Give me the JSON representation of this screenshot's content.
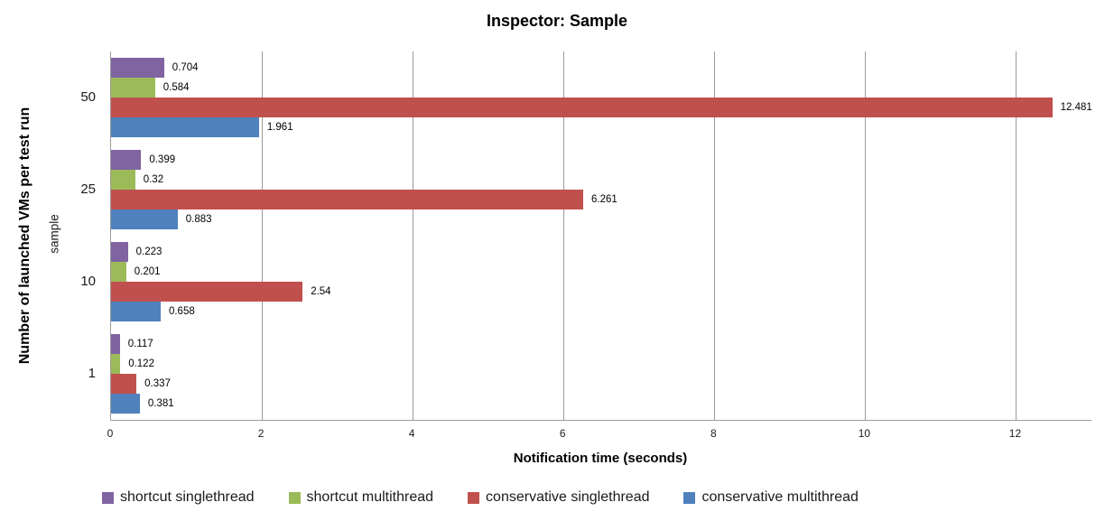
{
  "chart_data": {
    "type": "bar",
    "orientation": "horizontal",
    "title": "Inspector: Sample",
    "xlabel": "Notification time (seconds)",
    "ylabel": "Number of launched VMs per test run",
    "ylabel_secondary": "sample",
    "categories": [
      "50",
      "25",
      "10",
      "1"
    ],
    "series": [
      {
        "name": "shortcut singlethread",
        "color": "#8064A2",
        "values": [
          0.704,
          0.399,
          0.223,
          0.117
        ],
        "labels": [
          "0.704",
          "0.399",
          "0.223",
          "0.117"
        ]
      },
      {
        "name": "shortcut multithread",
        "color": "#9BBB59",
        "values": [
          0.584,
          0.32,
          0.201,
          0.122
        ],
        "labels": [
          "0.584",
          "0.32",
          "0.201",
          "0.122"
        ]
      },
      {
        "name": "conservative singlethread",
        "color": "#C0504D",
        "values": [
          12.481,
          6.261,
          2.54,
          0.337
        ],
        "labels": [
          "12.481",
          "6.261",
          "2.54",
          "0.337"
        ]
      },
      {
        "name": "conservative multithread",
        "color": "#4F81BD",
        "values": [
          1.961,
          0.883,
          0.658,
          0.381
        ],
        "labels": [
          "1.961",
          "0.883",
          "0.658",
          "0.381"
        ]
      }
    ],
    "xlim": [
      0,
      13
    ],
    "xticks": [
      0,
      2,
      4,
      6,
      8,
      10,
      12
    ],
    "grid": "vertical",
    "gridline_color": "#9b9b9b",
    "axis_color": "#9b9b9b",
    "legend_position": "bottom",
    "background_color": "#ffffff"
  }
}
